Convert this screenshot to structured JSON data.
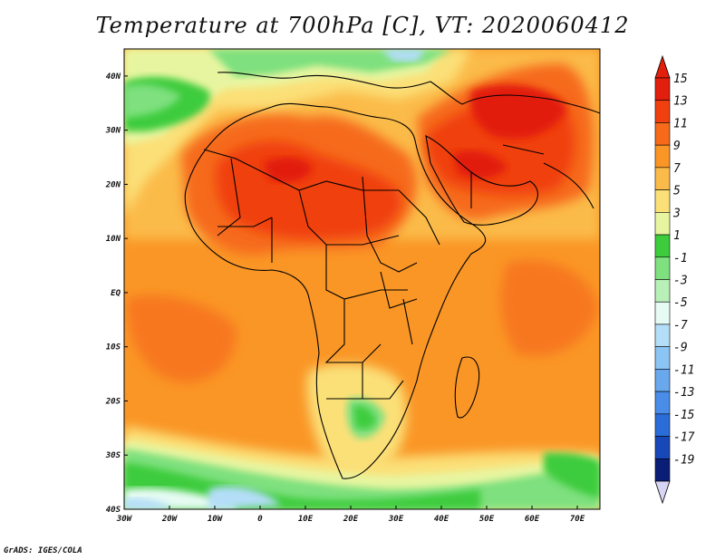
{
  "title": "Temperature at 700hPa [C], VT: 2020060412",
  "credit": "GrADS: IGES/COLA",
  "map": {
    "lon_range": [
      -30,
      75
    ],
    "lat_range": [
      -40,
      45
    ],
    "x_ticks": [
      "30W",
      "20W",
      "10W",
      "0",
      "10E",
      "20E",
      "30E",
      "40E",
      "50E",
      "60E",
      "70E"
    ],
    "y_ticks": [
      "40N",
      "30N",
      "20N",
      "10N",
      "EQ",
      "10S",
      "20S",
      "30S",
      "40S"
    ]
  },
  "colorbar": {
    "labels": [
      "15",
      "13",
      "11",
      "9",
      "7",
      "5",
      "3",
      "1",
      "-1",
      "-3",
      "-5",
      "-7",
      "-9",
      "-11",
      "-13",
      "-15",
      "-17",
      "-19"
    ],
    "colors": [
      "#e21e0c",
      "#f04010",
      "#f66a1a",
      "#fa9626",
      "#fbbb4a",
      "#fbe078",
      "#e8f5a0",
      "#3ccc3c",
      "#7ee07e",
      "#b8f0b8",
      "#e6fbf3",
      "#b4def8",
      "#8cc4f4",
      "#6aa8ee",
      "#4a8de8",
      "#2a6cd8",
      "#1848b8",
      "#0a1e78"
    ]
  },
  "legend_colors": {
    "ocean_warm": "#fa9626",
    "land_hot": "#f04010",
    "cool_green": "#3ccc3c",
    "cold_blue": "#b4def8"
  }
}
